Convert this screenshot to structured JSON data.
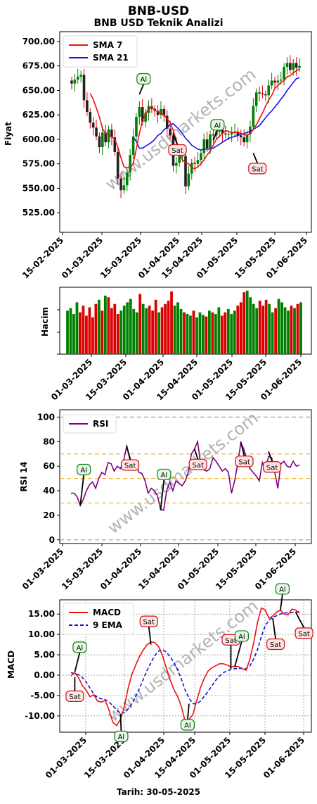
{
  "title": "BNB-USD",
  "subtitle": "BNB USD Teknik Analizi",
  "footer": "Tarih: 30-05-2025",
  "watermark": "www.usdmarkets.com",
  "colors": {
    "up": "#008000",
    "down": "#dd0000",
    "sma7": "#ee1111",
    "sma21": "#1515ee",
    "rsi": "#800080",
    "macd": "#ee1111",
    "signal": "#1111dd",
    "ref": "#f2b830",
    "grey": "#aaaaaa"
  },
  "chart_data": [
    {
      "type": "candlestick",
      "ylabel": "Fiyat",
      "ylim": [
        505,
        710
      ],
      "yticks": [
        "525.00",
        "550.00",
        "575.00",
        "600.00",
        "625.00",
        "650.00",
        "675.00",
        "700.00"
      ],
      "xticks": [
        "15-02-2025",
        "01-03-2025",
        "15-03-2025",
        "01-04-2025",
        "15-04-2025",
        "01-05-2025",
        "15-05-2025",
        "01-06-2025"
      ],
      "legend": [
        "SMA 7",
        "SMA 21"
      ],
      "close": [
        657,
        661,
        664,
        666,
        640,
        628,
        617,
        612,
        603,
        592,
        607,
        597,
        610,
        602,
        587,
        560,
        548,
        553,
        566,
        584,
        603,
        623,
        633,
        618,
        627,
        634,
        631,
        629,
        625,
        631,
        624,
        611,
        604,
        573,
        576,
        583,
        583,
        552,
        565,
        576,
        575,
        579,
        586,
        600,
        591,
        605,
        604,
        608,
        610,
        606,
        605,
        605,
        607,
        608,
        604,
        602,
        597,
        605,
        613,
        634,
        648,
        647,
        646,
        645,
        655,
        660,
        658,
        660,
        661,
        674,
        678,
        671,
        678,
        673,
        675
      ],
      "sma7": [
        null,
        null,
        null,
        null,
        null,
        null,
        647,
        641,
        632,
        623,
        611,
        606,
        604,
        603,
        600,
        592,
        581,
        572,
        571,
        571,
        575,
        590,
        606,
        619,
        626,
        631,
        633,
        630,
        628,
        627,
        625,
        621,
        617,
        609,
        599,
        585,
        579,
        576,
        575,
        571,
        570,
        572,
        575,
        579,
        584,
        588,
        594,
        600,
        603,
        606,
        609,
        608,
        607,
        607,
        607,
        606,
        605,
        604,
        606,
        610,
        615,
        621,
        627,
        634,
        640,
        645,
        652,
        655,
        658,
        660,
        664,
        665,
        668,
        670,
        672
      ],
      "sma21": [
        null,
        null,
        null,
        null,
        null,
        null,
        null,
        null,
        null,
        null,
        null,
        null,
        null,
        null,
        null,
        null,
        null,
        null,
        null,
        null,
        602,
        598,
        591,
        591,
        593,
        595,
        597,
        600,
        604,
        606,
        610,
        612,
        615,
        616,
        613,
        610,
        606,
        601,
        598,
        594,
        592,
        590,
        589,
        590,
        590,
        590,
        591,
        593,
        595,
        597,
        599,
        601,
        602,
        603,
        604,
        605,
        606,
        607,
        608,
        610,
        612,
        614,
        618,
        622,
        626,
        629,
        633,
        637,
        641,
        645,
        650,
        654,
        658,
        662,
        663
      ],
      "annotations": [
        {
          "label": "Al",
          "i": 22,
          "price": 646
        },
        {
          "label": "Sat",
          "i": 33,
          "price": 605
        },
        {
          "label": "Al",
          "i": 46,
          "price": 599
        },
        {
          "label": "Sat",
          "i": 59,
          "price": 586
        }
      ]
    },
    {
      "type": "bar",
      "ylabel": "Hacim",
      "xticks": [
        "01-03-2025",
        "15-03-2025",
        "01-04-2025",
        "15-04-2025",
        "01-05-2025",
        "15-05-2025",
        "01-06-2025"
      ],
      "values": [
        52,
        55,
        48,
        62,
        50,
        58,
        46,
        56,
        44,
        60,
        65,
        52,
        70,
        68,
        55,
        60,
        48,
        52,
        58,
        62,
        66,
        54,
        50,
        72,
        60,
        55,
        58,
        52,
        65,
        50,
        56,
        60,
        64,
        75,
        58,
        62,
        54,
        50,
        48,
        46,
        52,
        44,
        50,
        47,
        45,
        52,
        50,
        48,
        56,
        46,
        50,
        54,
        48,
        52,
        58,
        62,
        74,
        76,
        68,
        60,
        55,
        64,
        58,
        65,
        60,
        50,
        55,
        66,
        62,
        56,
        52,
        58,
        55,
        60,
        62
      ]
    },
    {
      "type": "line",
      "ylabel": "RSI 14",
      "ylim": [
        -3,
        106
      ],
      "yticks": [
        "0",
        "20",
        "40",
        "60",
        "80",
        "100"
      ],
      "xticks": [
        "01-03-2025",
        "15-03-2025",
        "01-04-2025",
        "15-04-2025",
        "01-05-2025",
        "15-05-2025",
        "01-06-2025"
      ],
      "legend": [
        "RSI"
      ],
      "reference_lines": [
        0,
        30,
        50,
        70,
        100
      ],
      "values": [
        38,
        38,
        35,
        28,
        33,
        40,
        45,
        47,
        42,
        50,
        55,
        53,
        63,
        62,
        56,
        60,
        58,
        64,
        76,
        68,
        60,
        62,
        55,
        54,
        48,
        38,
        42,
        40,
        36,
        25,
        24,
        40,
        47,
        40,
        48,
        46,
        44,
        48,
        55,
        70,
        74,
        80,
        62,
        57,
        56,
        58,
        67,
        64,
        60,
        56,
        58,
        55,
        38,
        48,
        62,
        79,
        74,
        65,
        58,
        55,
        52,
        48,
        63,
        56,
        68,
        67,
        55,
        42,
        62,
        64,
        60,
        59,
        64,
        60,
        61
      ],
      "annotations": [
        {
          "label": "Al",
          "i": 3,
          "value": 28
        },
        {
          "label": "Sat",
          "i": 18,
          "value": 77
        },
        {
          "label": "Al",
          "i": 29,
          "value": 24
        },
        {
          "label": "Sat",
          "i": 40,
          "value": 74
        },
        {
          "label": "Sat",
          "i": 55,
          "value": 80
        },
        {
          "label": "Sat",
          "i": 64,
          "value": 72
        }
      ]
    },
    {
      "type": "line",
      "ylabel": "MACD",
      "ylim": [
        -14,
        18.5
      ],
      "yticks": [
        "-10.00",
        "-5.00",
        "0.00",
        "5.00",
        "10.00",
        "15.00"
      ],
      "xticks": [
        "01-03-2025",
        "15-03-2025",
        "01-04-2025",
        "15-04-2025",
        "01-05-2025",
        "15-05-2025",
        "01-06-2025"
      ],
      "legend": [
        "MACD",
        "9 EMA"
      ],
      "series": [
        {
          "name": "MACD",
          "values": [
            -0.2,
            0.6,
            -0.6,
            -2.6,
            -3.7,
            -5.3,
            -4.8,
            -6.4,
            -6.6,
            -6.2,
            -8.6,
            -11.6,
            -12.4,
            -10.8,
            -7.8,
            -3.2,
            0.2,
            2.5,
            4.6,
            6.2,
            7.5,
            8.2,
            8.0,
            7.0,
            4.9,
            1.9,
            -1.0,
            -3.5,
            -5.2,
            -7.7,
            -11.5,
            -10.9,
            -9.7,
            -6.3,
            -3.1,
            -0.8,
            1.0,
            1.8,
            2.3,
            2.8,
            2.8,
            2.5,
            2.0,
            2.2,
            2.1,
            1.6,
            1.2,
            4.0,
            8.0,
            13.0,
            16.5,
            16.0,
            14.0,
            14.5,
            15.5,
            16.0,
            15.0,
            14.8,
            16.2,
            16.0,
            15.2
          ]
        },
        {
          "name": "9 EMA",
          "values": [
            0.6,
            0.4,
            0.1,
            -0.6,
            -1.7,
            -3.2,
            -4.7,
            -5.5,
            -5.8,
            -6.0,
            -6.6,
            -7.5,
            -8.6,
            -9.4,
            -9.2,
            -8.3,
            -7.0,
            -5.2,
            -3.2,
            -1.0,
            1.2,
            3.1,
            4.8,
            5.9,
            6.3,
            5.7,
            4.6,
            3.1,
            1.3,
            -1.0,
            -3.7,
            -5.6,
            -7.0,
            -7.0,
            -6.4,
            -5.2,
            -4.0,
            -2.6,
            -1.3,
            -0.2,
            0.6,
            1.1,
            1.4,
            1.6,
            1.6,
            1.7,
            1.6,
            2.3,
            4.0,
            6.3,
            9.5,
            12.1,
            13.5,
            14.2,
            14.6,
            15.0,
            15.3,
            15.3,
            15.4,
            15.5,
            15.6
          ]
        }
      ],
      "annotations": [
        {
          "label": "Sat",
          "i": 1,
          "value": -0.5
        },
        {
          "label": "Al",
          "i": 1,
          "value": 0.8
        },
        {
          "label": "Al",
          "i": 13,
          "value": -9.5
        },
        {
          "label": "Sat",
          "i": 21,
          "value": 7.5
        },
        {
          "label": "Al",
          "i": 31,
          "value": -7.0
        },
        {
          "label": "Sat",
          "i": 42,
          "value": 1.6
        },
        {
          "label": "Al",
          "i": 43,
          "value": 2.0
        },
        {
          "label": "Sat",
          "i": 53,
          "value": 14.0
        },
        {
          "label": "Al",
          "i": 55,
          "value": 16.0
        },
        {
          "label": "Sat",
          "i": 59,
          "value": 15.5
        }
      ]
    }
  ]
}
